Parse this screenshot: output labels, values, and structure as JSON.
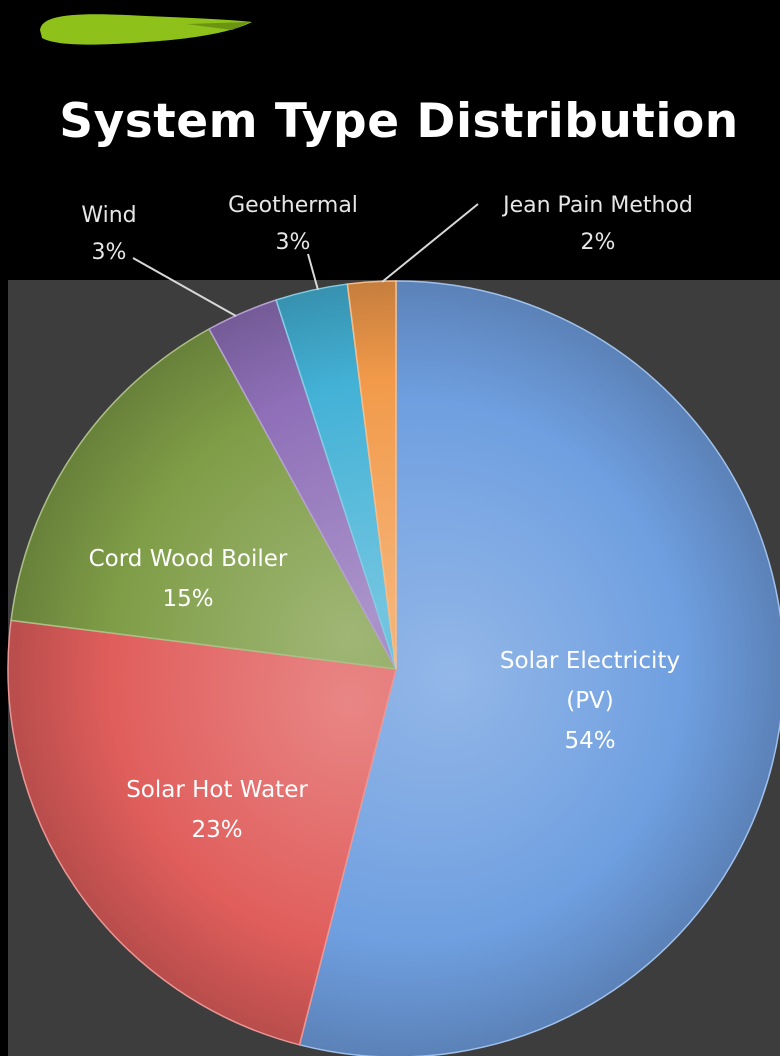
{
  "chart_data": {
    "type": "pie",
    "title": "System Type Distribution",
    "slices": [
      {
        "label": "Solar Electricity (PV)",
        "label_lines": [
          "Solar Electricity",
          "(PV)"
        ],
        "percent_label": "54%",
        "value": 54,
        "color": "#6f9fe0"
      },
      {
        "label": "Solar Hot Water",
        "label_lines": [
          "Solar Hot Water"
        ],
        "percent_label": "23%",
        "value": 23,
        "color": "#e05e5c"
      },
      {
        "label": "Cord Wood Boiler",
        "label_lines": [
          "Cord Wood Boiler"
        ],
        "percent_label": "15%",
        "value": 15,
        "color": "#7f9d47"
      },
      {
        "label": "Wind",
        "label_lines": [
          "Wind"
        ],
        "percent_label": "3%",
        "value": 3,
        "color": "#8e6fb8"
      },
      {
        "label": "Geothermal",
        "label_lines": [
          "Geothermal"
        ],
        "percent_label": "3%",
        "value": 3,
        "color": "#43b1d6"
      },
      {
        "label": "Jean Pain Method",
        "label_lines": [
          "Jean Pain Method"
        ],
        "percent_label": "2%",
        "value": 2,
        "color": "#f29a4a"
      }
    ],
    "legend": "none",
    "data_labels": "category and percent"
  },
  "colors": {
    "background": "#000000",
    "plot_area": "#3d3d3d",
    "highlighter_mark": "#8ec21b"
  }
}
